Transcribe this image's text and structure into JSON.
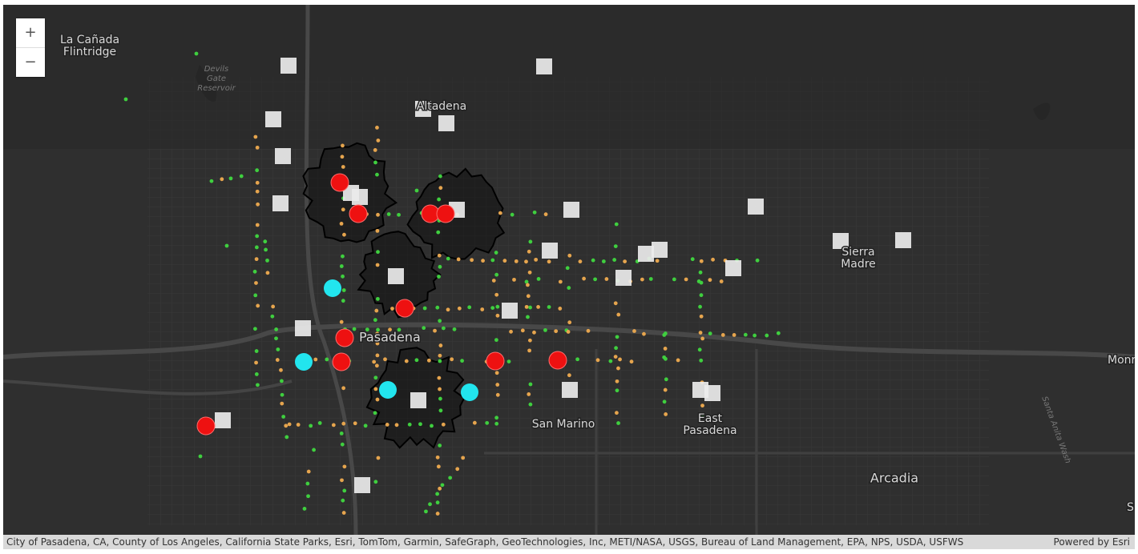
{
  "zoom": {
    "in": "+",
    "out": "−"
  },
  "labels": [
    {
      "lines": [
        "La Cañada",
        "Flintridge"
      ]
    },
    {
      "lines": [
        "Devils",
        "Gate",
        "Reservoir"
      ]
    },
    {
      "lines": [
        "Altadena"
      ]
    },
    {
      "lines": [
        "Pasadena"
      ]
    },
    {
      "lines": [
        "San Marino"
      ]
    },
    {
      "lines": [
        "East",
        "Pasadena"
      ]
    },
    {
      "lines": [
        "Sierra",
        "Madre"
      ]
    },
    {
      "lines": [
        "Arcadia"
      ]
    },
    {
      "lines": [
        "Monr"
      ]
    },
    {
      "lines": [
        "S"
      ]
    },
    {
      "lines": [
        "Santa Anita Wash"
      ]
    }
  ],
  "attribution": "City of Pasadena, CA, County of Los Angeles, California State Parks, Esri, TomTom, Garmin, SafeGraph, GeoTechnologies, Inc, METI/NASA, USGS, Bureau of Land Management, EPA, NPS, USDA, USFWS",
  "powered": "Powered by Esri"
}
